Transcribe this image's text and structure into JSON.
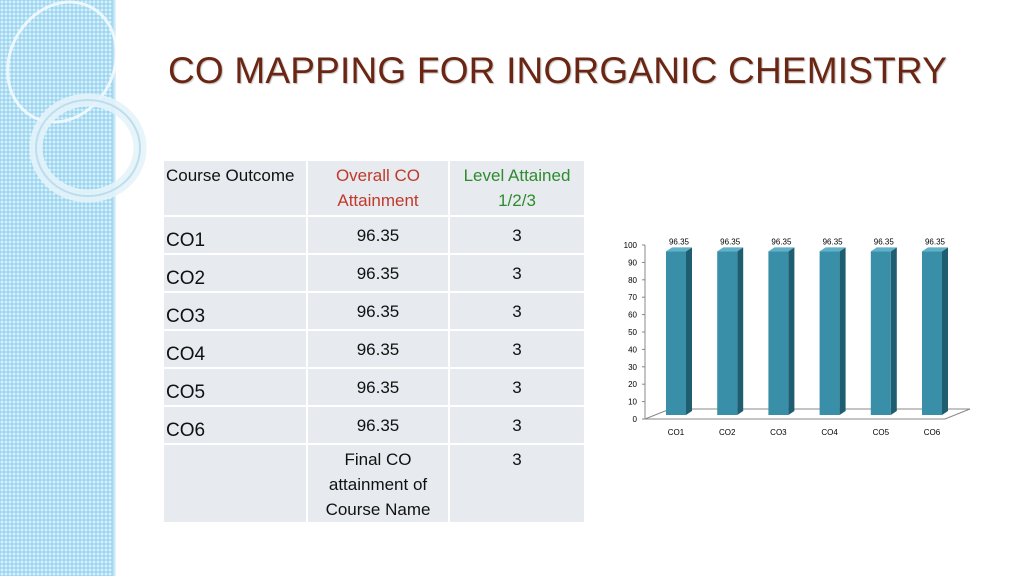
{
  "title": "CO MAPPING FOR INORGANIC CHEMISTRY",
  "table": {
    "headers": {
      "col1": "Course Outcome",
      "col2": "Overall CO Attainment",
      "col3": "Level Attained 1/2/3"
    },
    "rows": [
      {
        "outcome": "CO1",
        "attainment": "96.35",
        "level": "3"
      },
      {
        "outcome": "CO2",
        "attainment": "96.35",
        "level": "3"
      },
      {
        "outcome": "CO3",
        "attainment": "96.35",
        "level": "3"
      },
      {
        "outcome": "CO4",
        "attainment": "96.35",
        "level": "3"
      },
      {
        "outcome": "CO5",
        "attainment": "96.35",
        "level": "3"
      },
      {
        "outcome": "CO6",
        "attainment": "96.35",
        "level": "3"
      }
    ],
    "final": {
      "outcome": "",
      "label": "Final CO attainment of Course Name",
      "level": "3"
    }
  },
  "colors": {
    "title": "#6b2613",
    "header_red": "#c0392b",
    "header_green": "#2e8b2e",
    "bar_front": "#3a8fa8",
    "bar_side": "#1f5d70"
  },
  "chart_data": {
    "type": "bar",
    "categories": [
      "CO1",
      "CO2",
      "CO3",
      "CO4",
      "CO5",
      "CO6"
    ],
    "values": [
      96.35,
      96.35,
      96.35,
      96.35,
      96.35,
      96.35
    ],
    "data_labels": [
      "96.35",
      "96.35",
      "96.35",
      "96.35",
      "96.35",
      "96.35"
    ],
    "ylim": [
      0,
      100
    ],
    "yticks": [
      0,
      10,
      20,
      30,
      40,
      50,
      60,
      70,
      80,
      90,
      100
    ],
    "grid": false,
    "legend": "none",
    "style": "3d"
  }
}
